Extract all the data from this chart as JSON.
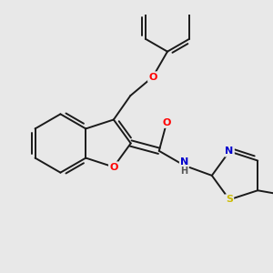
{
  "background_color": "#e8e8e8",
  "bond_color": "#1a1a1a",
  "atom_colors": {
    "O": "#ff0000",
    "N": "#0000cd",
    "S": "#ccbb00",
    "C": "#1a1a1a"
  },
  "figsize": [
    3.0,
    3.0
  ],
  "dpi": 100
}
